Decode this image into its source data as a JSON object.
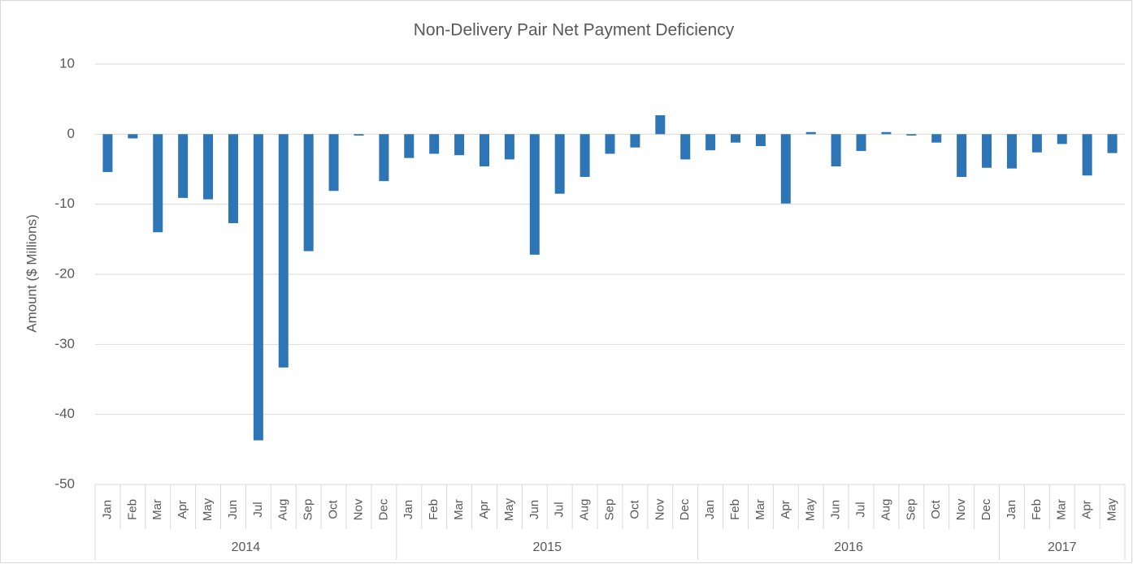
{
  "chart_data": {
    "type": "bar",
    "title": "Non-Delivery Pair Net Payment Deficiency",
    "y_label": "Amount ($ Millions)",
    "color": "#2e75b6",
    "ylim": [
      -50,
      10
    ],
    "yticks": [
      10,
      0,
      -10,
      -20,
      -30,
      -40,
      -50
    ],
    "grid": true,
    "groups": [
      {
        "label": "2014",
        "categories": [
          "Jan",
          "Feb",
          "Mar",
          "Apr",
          "May",
          "Jun",
          "Jul",
          "Aug",
          "Sep",
          "Oct",
          "Nov",
          "Dec"
        ],
        "values": [
          -5.4,
          -0.6,
          -14,
          -9.1,
          -9.3,
          -12.7,
          -43.7,
          -33.3,
          -16.7,
          -8.1,
          -0.2,
          -6.7
        ]
      },
      {
        "label": "2015",
        "categories": [
          "Jan",
          "Feb",
          "Mar",
          "Apr",
          "May",
          "Jun",
          "Jul",
          "Aug",
          "Sep",
          "Oct",
          "Nov",
          "Dec"
        ],
        "values": [
          -3.4,
          -2.8,
          -3,
          -4.6,
          -3.6,
          -17.2,
          -8.5,
          -6.1,
          -2.8,
          -1.9,
          2.7,
          -3.6
        ]
      },
      {
        "label": "2016",
        "categories": [
          "Jan",
          "Feb",
          "Mar",
          "Apr",
          "May",
          "Jun",
          "Jul",
          "Aug",
          "Sep",
          "Oct",
          "Nov",
          "Dec"
        ],
        "values": [
          -2.3,
          -1.2,
          -1.7,
          -9.9,
          0.3,
          -4.6,
          -2.4,
          0.3,
          -0.2,
          -1.2,
          -6.1,
          -4.8
        ]
      },
      {
        "label": "2017",
        "categories": [
          "Jan",
          "Feb",
          "Mar",
          "Apr",
          "May"
        ],
        "values": [
          -4.9,
          -2.6,
          -1.4,
          -5.9,
          -2.7
        ]
      }
    ]
  }
}
